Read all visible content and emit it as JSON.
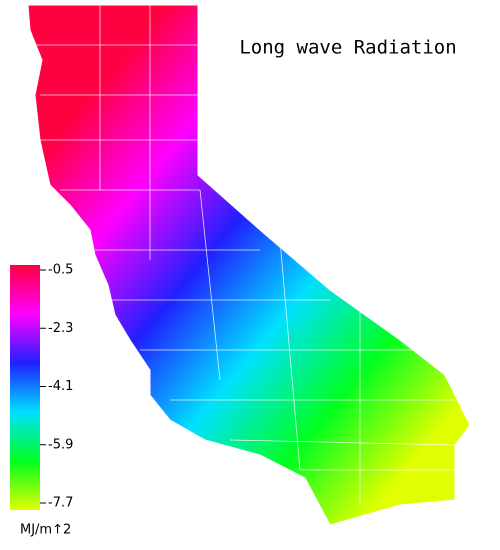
{
  "title": "Long wave Radiation",
  "colorbar": {
    "ticks": [
      -0.5,
      -2.3,
      -4.1,
      -5.9,
      -7.7
    ],
    "unit": "MJ/m↑2",
    "colormap": [
      "#ff0040",
      "#ff00ff",
      "#2020ff",
      "#00e0ff",
      "#00ff20",
      "#e0ff00"
    ]
  }
}
